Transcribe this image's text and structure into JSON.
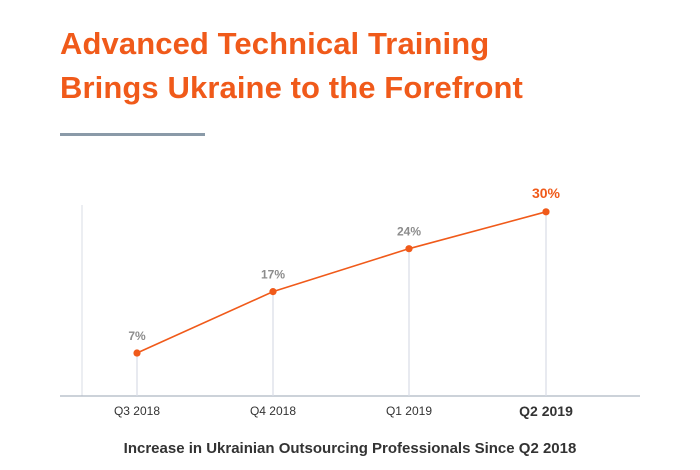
{
  "colors": {
    "accent": "#f05a1a",
    "divider": "#8a9aa8",
    "grid": "#d8dde6",
    "axis": "#aeb6c2",
    "value_label": "#8c8c8c",
    "tick_label": "#333333"
  },
  "title_lines": [
    "Advanced Technical Training",
    "Brings Ukraine to the Forefront"
  ],
  "chart_data": {
    "type": "line",
    "title": "Advanced Technical Training Brings Ukraine to the Forefront",
    "caption": "Increase in Ukrainian Outsourcing Professionals Since Q2 2018",
    "xlabel": "",
    "ylabel": "",
    "categories": [
      "Q3 2018",
      "Q4 2018",
      "Q1 2019",
      "Q2 2019"
    ],
    "series": [
      {
        "values": [
          7,
          17,
          24,
          30
        ],
        "labels": [
          "7%",
          "17%",
          "24%",
          "30%"
        ]
      }
    ],
    "highlight_index": 3,
    "ylim": [
      0,
      36
    ],
    "grid": false,
    "legend": "none"
  }
}
